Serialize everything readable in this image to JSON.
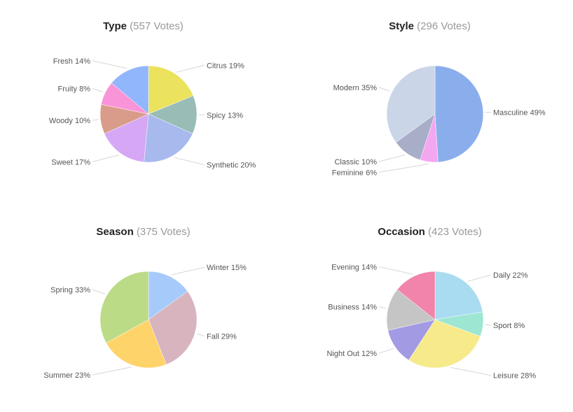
{
  "chart_data": [
    {
      "type": "pie",
      "title": "Type",
      "subtitle": "(557 Votes)",
      "slices": [
        {
          "label": "Citrus",
          "value": 19,
          "display": "Citrus 19%",
          "color": "#ebe25e"
        },
        {
          "label": "Spicy",
          "value": 13,
          "display": "Spicy 13%",
          "color": "#99bcb6"
        },
        {
          "label": "Synthetic",
          "value": 20,
          "display": "Synthetic 20%",
          "color": "#a8b9ee"
        },
        {
          "label": "Sweet",
          "value": 17,
          "display": "Sweet 17%",
          "color": "#d5a7f5"
        },
        {
          "label": "Woody",
          "value": 10,
          "display": "Woody 10%",
          "color": "#d99c8b"
        },
        {
          "label": "Fruity",
          "value": 8,
          "display": "Fruity 8%",
          "color": "#f994d9"
        },
        {
          "label": "Fresh",
          "value": 14,
          "display": "Fresh 14%",
          "color": "#91b6fb"
        }
      ]
    },
    {
      "type": "pie",
      "title": "Style",
      "subtitle": "(296 Votes)",
      "slices": [
        {
          "label": "Masculine",
          "value": 49,
          "display": "Masculine 49%",
          "color": "#8aaeec"
        },
        {
          "label": "Feminine",
          "value": 6,
          "display": "Feminine 6%",
          "color": "#f3a7f1"
        },
        {
          "label": "Classic",
          "value": 10,
          "display": "Classic 10%",
          "color": "#a8adc8"
        },
        {
          "label": "Modern",
          "value": 35,
          "display": "Modern 35%",
          "color": "#cad5e8"
        }
      ]
    },
    {
      "type": "pie",
      "title": "Season",
      "subtitle": "(375 Votes)",
      "slices": [
        {
          "label": "Winter",
          "value": 15,
          "display": "Winter 15%",
          "color": "#a6cbfb"
        },
        {
          "label": "Fall",
          "value": 29,
          "display": "Fall 29%",
          "color": "#d8b4be"
        },
        {
          "label": "Summer",
          "value": 23,
          "display": "Summer 23%",
          "color": "#fed46a"
        },
        {
          "label": "Spring",
          "value": 33,
          "display": "Spring 33%",
          "color": "#bcdb86"
        }
      ]
    },
    {
      "type": "pie",
      "title": "Occasion",
      "subtitle": "(423 Votes)",
      "slices": [
        {
          "label": "Daily",
          "value": 22,
          "display": "Daily 22%",
          "color": "#aadcf1"
        },
        {
          "label": "Sport",
          "value": 8,
          "display": "Sport 8%",
          "color": "#9de6d2"
        },
        {
          "label": "Leisure",
          "value": 28,
          "display": "Leisure 28%",
          "color": "#f6ea8b"
        },
        {
          "label": "Night Out",
          "value": 12,
          "display": "Night Out 12%",
          "color": "#a39ae4"
        },
        {
          "label": "Business",
          "value": 14,
          "display": "Business 14%",
          "color": "#c5c5c5"
        },
        {
          "label": "Evening",
          "value": 14,
          "display": "Evening 14%",
          "color": "#f283aa"
        }
      ]
    }
  ]
}
